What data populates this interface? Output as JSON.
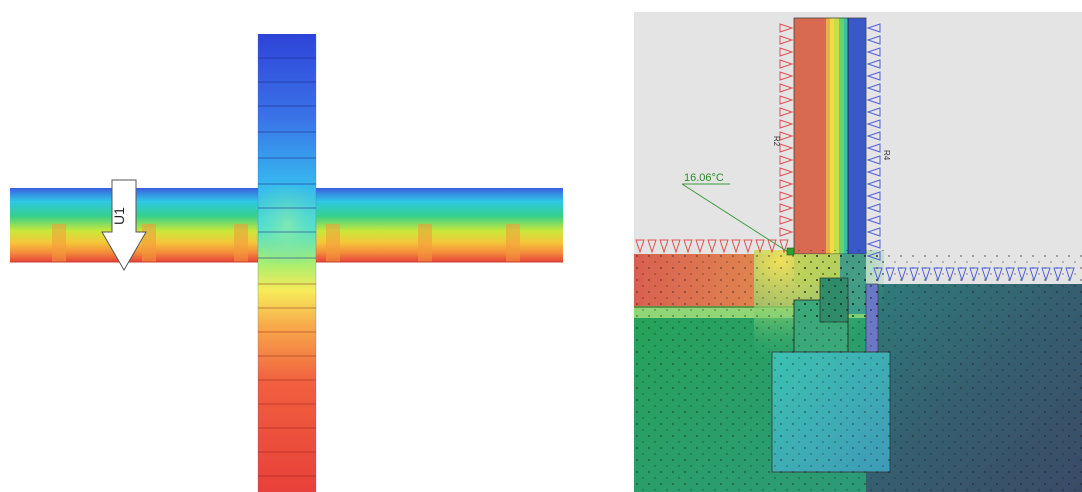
{
  "left": {
    "arrow_label": "U1"
  },
  "right": {
    "temperature_callout": "16.06°C",
    "label_r2": "R2",
    "label_r4": "R4"
  },
  "colors": {
    "cold": "#2b3fd6",
    "cool": "#2fd0ea",
    "mid": "#21b35a",
    "warm": "#f6e83a",
    "hot": "#e8503a",
    "inside_ground": "#2fa866",
    "outside_ground": "#355a6a",
    "boundary_warm": "#e85a5a",
    "boundary_cold": "#5a6ad8",
    "background": "#ffffff"
  }
}
